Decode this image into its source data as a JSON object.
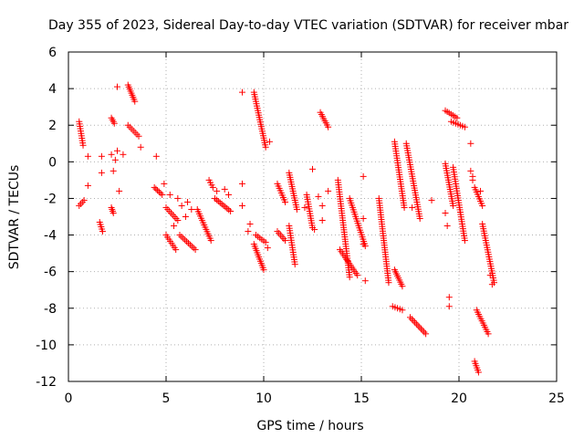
{
  "chart_data": {
    "type": "scatter",
    "title": "Day 355 of 2023, Sidereal Day-to-day VTEC variation (SDTVAR) for receiver mbar",
    "xlabel": "GPS time / hours",
    "ylabel": "SDTVAR / TECUs",
    "xlim": [
      0,
      25
    ],
    "ylim": [
      -12,
      6
    ],
    "x_ticks": [
      0,
      5,
      10,
      15,
      20,
      25
    ],
    "x_tick_labels": [
      "0",
      "5",
      "10",
      "15",
      "20",
      "25"
    ],
    "y_ticks": [
      -12,
      -10,
      -8,
      -6,
      -4,
      -2,
      0,
      2,
      4,
      6
    ],
    "y_tick_labels": [
      "-12",
      "-10",
      "-8",
      "-6",
      "-4",
      "-2",
      "0",
      "2",
      "4",
      "6"
    ],
    "grid": true,
    "marker": "+",
    "marker_color": "#ff0000",
    "tracks": [
      {
        "x": [
          0.55,
          0.75
        ],
        "y": [
          2.2,
          0.9
        ]
      },
      {
        "x": [
          0.55,
          0.8
        ],
        "y": [
          -2.4,
          -2.1
        ]
      },
      {
        "x": [
          1.6,
          1.75
        ],
        "y": [
          -3.3,
          -3.8
        ]
      },
      {
        "x": [
          2.2,
          2.35
        ],
        "y": [
          2.4,
          2.1
        ]
      },
      {
        "x": [
          2.2,
          2.3
        ],
        "y": [
          -2.5,
          -2.8
        ]
      },
      {
        "x": [
          3.05,
          3.4
        ],
        "y": [
          4.2,
          3.3
        ]
      },
      {
        "x": [
          3.05,
          3.6
        ],
        "y": [
          2.0,
          1.4
        ]
      },
      {
        "x": [
          4.4,
          4.8
        ],
        "y": [
          -1.4,
          -1.8
        ]
      },
      {
        "x": [
          5.0,
          5.6
        ],
        "y": [
          -2.5,
          -3.2
        ]
      },
      {
        "x": [
          5.0,
          5.5
        ],
        "y": [
          -4.0,
          -4.8
        ]
      },
      {
        "x": [
          5.7,
          6.5
        ],
        "y": [
          -4.0,
          -4.8
        ]
      },
      {
        "x": [
          6.6,
          7.3
        ],
        "y": [
          -2.6,
          -4.3
        ]
      },
      {
        "x": [
          7.2,
          7.4
        ],
        "y": [
          -1.0,
          -1.4
        ]
      },
      {
        "x": [
          7.5,
          8.3
        ],
        "y": [
          -2.0,
          -2.7
        ]
      },
      {
        "x": [
          9.5,
          10.1
        ],
        "y": [
          3.8,
          0.8
        ]
      },
      {
        "x": [
          9.5,
          10.0
        ],
        "y": [
          -4.5,
          -5.9
        ]
      },
      {
        "x": [
          9.6,
          10.1
        ],
        "y": [
          -4.0,
          -4.4
        ]
      },
      {
        "x": [
          10.7,
          11.1
        ],
        "y": [
          -1.2,
          -2.2
        ]
      },
      {
        "x": [
          10.7,
          11.1
        ],
        "y": [
          -3.8,
          -4.3
        ]
      },
      {
        "x": [
          11.3,
          11.7
        ],
        "y": [
          -0.6,
          -2.6
        ]
      },
      {
        "x": [
          11.3,
          11.6
        ],
        "y": [
          -3.5,
          -5.6
        ]
      },
      {
        "x": [
          12.2,
          12.5
        ],
        "y": [
          -1.8,
          -3.6
        ]
      },
      {
        "x": [
          12.9,
          13.3
        ],
        "y": [
          2.7,
          1.9
        ]
      },
      {
        "x": [
          13.8,
          14.4
        ],
        "y": [
          -1.0,
          -6.3
        ]
      },
      {
        "x": [
          13.9,
          14.8
        ],
        "y": [
          -4.8,
          -6.2
        ]
      },
      {
        "x": [
          14.4,
          15.2
        ],
        "y": [
          -2.0,
          -4.6
        ]
      },
      {
        "x": [
          15.9,
          16.4
        ],
        "y": [
          -2.0,
          -6.6
        ]
      },
      {
        "x": [
          16.7,
          17.2
        ],
        "y": [
          1.1,
          -2.5
        ]
      },
      {
        "x": [
          16.7,
          17.1
        ],
        "y": [
          -5.9,
          -6.8
        ]
      },
      {
        "x": [
          16.6,
          17.1
        ],
        "y": [
          -7.9,
          -8.1
        ]
      },
      {
        "x": [
          17.3,
          18.0
        ],
        "y": [
          1.0,
          -3.1
        ]
      },
      {
        "x": [
          17.5,
          18.3
        ],
        "y": [
          -8.5,
          -9.4
        ]
      },
      {
        "x": [
          19.3,
          19.9
        ],
        "y": [
          2.8,
          2.4
        ]
      },
      {
        "x": [
          19.6,
          20.3
        ],
        "y": [
          2.2,
          1.9
        ]
      },
      {
        "x": [
          19.3,
          19.7
        ],
        "y": [
          -0.1,
          -2.4
        ]
      },
      {
        "x": [
          19.7,
          20.3
        ],
        "y": [
          -0.3,
          -4.3
        ]
      },
      {
        "x": [
          20.8,
          21.2
        ],
        "y": [
          -1.4,
          -2.4
        ]
      },
      {
        "x": [
          21.2,
          21.8
        ],
        "y": [
          -3.4,
          -6.6
        ]
      },
      {
        "x": [
          20.9,
          21.5
        ],
        "y": [
          -8.1,
          -9.4
        ]
      },
      {
        "x": [
          20.8,
          21.0
        ],
        "y": [
          -10.9,
          -11.5
        ]
      }
    ],
    "scatter_points": [
      {
        "x": 1.0,
        "y": 0.3
      },
      {
        "x": 1.0,
        "y": -1.3
      },
      {
        "x": 1.7,
        "y": -0.6
      },
      {
        "x": 1.7,
        "y": 0.3
      },
      {
        "x": 2.2,
        "y": 0.4
      },
      {
        "x": 2.3,
        "y": -0.5
      },
      {
        "x": 2.4,
        "y": 0.1
      },
      {
        "x": 2.5,
        "y": 0.6
      },
      {
        "x": 2.6,
        "y": -1.6
      },
      {
        "x": 2.5,
        "y": 4.1
      },
      {
        "x": 2.8,
        "y": 0.4
      },
      {
        "x": 3.7,
        "y": 0.8
      },
      {
        "x": 4.5,
        "y": 0.3
      },
      {
        "x": 4.9,
        "y": -1.2
      },
      {
        "x": 5.2,
        "y": -1.8
      },
      {
        "x": 5.4,
        "y": -3.5
      },
      {
        "x": 5.6,
        "y": -2.0
      },
      {
        "x": 5.8,
        "y": -2.4
      },
      {
        "x": 6.1,
        "y": -2.2
      },
      {
        "x": 6.0,
        "y": -3.0
      },
      {
        "x": 6.3,
        "y": -2.6
      },
      {
        "x": 7.6,
        "y": -1.6
      },
      {
        "x": 8.0,
        "y": -1.5
      },
      {
        "x": 8.2,
        "y": -1.8
      },
      {
        "x": 8.9,
        "y": 3.8
      },
      {
        "x": 8.9,
        "y": -1.2
      },
      {
        "x": 8.9,
        "y": -2.4
      },
      {
        "x": 9.3,
        "y": -3.4
      },
      {
        "x": 9.2,
        "y": -3.8
      },
      {
        "x": 10.2,
        "y": -4.7
      },
      {
        "x": 10.3,
        "y": 1.1
      },
      {
        "x": 12.1,
        "y": -2.5
      },
      {
        "x": 12.5,
        "y": -0.4
      },
      {
        "x": 12.6,
        "y": -3.7
      },
      {
        "x": 12.8,
        "y": -1.9
      },
      {
        "x": 13.0,
        "y": -2.4
      },
      {
        "x": 13.0,
        "y": -3.2
      },
      {
        "x": 13.3,
        "y": -1.6
      },
      {
        "x": 15.1,
        "y": -0.8
      },
      {
        "x": 15.1,
        "y": -3.1
      },
      {
        "x": 15.1,
        "y": -4.5
      },
      {
        "x": 15.2,
        "y": -6.5
      },
      {
        "x": 17.6,
        "y": -2.5
      },
      {
        "x": 18.6,
        "y": -2.1
      },
      {
        "x": 19.3,
        "y": -2.8
      },
      {
        "x": 19.4,
        "y": -3.5
      },
      {
        "x": 19.5,
        "y": -7.4
      },
      {
        "x": 19.5,
        "y": -7.9
      },
      {
        "x": 20.6,
        "y": 1.0
      },
      {
        "x": 20.6,
        "y": -0.5
      },
      {
        "x": 20.7,
        "y": -1.0
      },
      {
        "x": 20.7,
        "y": -0.8
      },
      {
        "x": 21.1,
        "y": -1.6
      },
      {
        "x": 21.6,
        "y": -6.2
      },
      {
        "x": 21.7,
        "y": -6.7
      }
    ]
  }
}
